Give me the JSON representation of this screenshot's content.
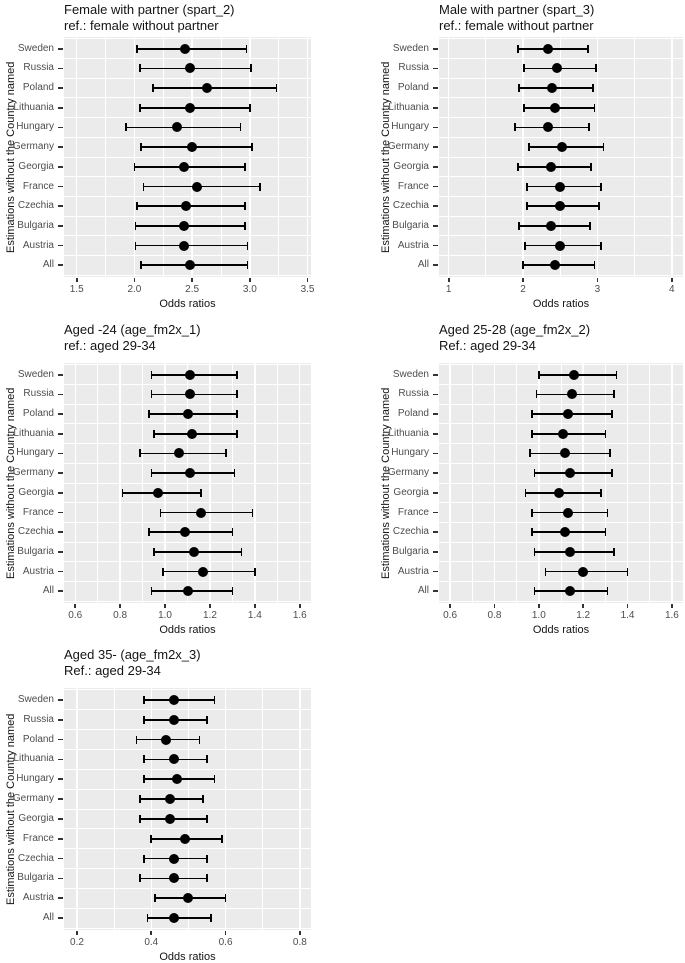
{
  "figure": {
    "x_axis_label": "Odds ratios",
    "y_axis_label": "Estimations without the Country named",
    "countries": [
      "Sweden",
      "Russia",
      "Poland",
      "Lithuania",
      "Hungary",
      "Germany",
      "Georgia",
      "France",
      "Czechia",
      "Bulgaria",
      "Austria",
      "All"
    ],
    "colors": {
      "panel_background": "#ebebeb",
      "gridline": "#ffffff",
      "point": "#000000",
      "axis_text": "#4d4d4d",
      "title_text": "#141414"
    }
  },
  "chart_data": [
    {
      "id": "spart_2",
      "type": "scatter",
      "title_line1": "Female with partner (spart_2)",
      "title_line2": "ref.: female without partner",
      "xlabel": "Odds ratios",
      "ylabel": "Estimations without the Country named",
      "grid": true,
      "legend": false,
      "x_tick_values": [
        1.5,
        2.0,
        2.5,
        3.0,
        3.5
      ],
      "x_tick_labels": [
        "1.5",
        "2.0",
        "2.5",
        "3.0",
        "3.5"
      ],
      "xlim": [
        1.39,
        3.53
      ],
      "categories": [
        "Sweden",
        "Russia",
        "Poland",
        "Lithuania",
        "Hungary",
        "Germany",
        "Georgia",
        "France",
        "Czechia",
        "Bulgaria",
        "Austria",
        "All"
      ],
      "series": [
        {
          "name": "odds_ratio",
          "values": [
            2.44,
            2.48,
            2.63,
            2.48,
            2.37,
            2.5,
            2.43,
            2.54,
            2.45,
            2.43,
            2.43,
            2.48
          ]
        },
        {
          "name": "ci_low",
          "values": [
            2.02,
            2.05,
            2.16,
            2.05,
            1.93,
            2.06,
            2.0,
            2.08,
            2.02,
            2.01,
            2.01,
            2.06
          ]
        },
        {
          "name": "ci_high",
          "values": [
            2.97,
            3.01,
            3.23,
            3.0,
            2.92,
            3.02,
            2.96,
            3.09,
            2.96,
            2.96,
            2.98,
            2.98
          ]
        }
      ]
    },
    {
      "id": "spart_3",
      "type": "scatter",
      "title_line1": "Male with partner (spart_3)",
      "title_line2": "ref.: female without partner",
      "xlabel": "Odds ratios",
      "ylabel": "Estimations without the Country named",
      "grid": true,
      "legend": false,
      "x_tick_values": [
        1,
        2,
        3,
        4
      ],
      "x_tick_labels": [
        "1",
        "2",
        "3",
        "4"
      ],
      "xlim": [
        0.87,
        4.15
      ],
      "categories": [
        "Sweden",
        "Russia",
        "Poland",
        "Lithuania",
        "Hungary",
        "Germany",
        "Georgia",
        "France",
        "Czechia",
        "Bulgaria",
        "Austria",
        "All"
      ],
      "series": [
        {
          "name": "odds_ratio",
          "values": [
            2.34,
            2.45,
            2.39,
            2.43,
            2.34,
            2.53,
            2.37,
            2.5,
            2.5,
            2.38,
            2.49,
            2.43
          ]
        },
        {
          "name": "ci_low",
          "values": [
            1.93,
            2.01,
            1.95,
            2.01,
            1.89,
            2.08,
            1.93,
            2.05,
            2.05,
            1.95,
            2.03,
            2.0
          ]
        },
        {
          "name": "ci_high",
          "values": [
            2.87,
            2.98,
            2.94,
            2.96,
            2.89,
            3.08,
            2.91,
            3.05,
            3.02,
            2.9,
            3.05,
            2.96
          ]
        }
      ]
    },
    {
      "id": "age_fm2x_1",
      "type": "scatter",
      "title_line1": "Aged -24 (age_fm2x_1)",
      "title_line2": "ref.: aged 29-34",
      "xlabel": "Odds ratios",
      "ylabel": "Estimations without the Country named",
      "grid": true,
      "legend": false,
      "x_tick_values": [
        0.6,
        0.8,
        1.0,
        1.2,
        1.4,
        1.6
      ],
      "x_tick_labels": [
        "0.6",
        "0.8",
        "1.0",
        "1.2",
        "1.4",
        "1.6"
      ],
      "xlim": [
        0.55,
        1.65
      ],
      "categories": [
        "Sweden",
        "Russia",
        "Poland",
        "Lithuania",
        "Hungary",
        "Germany",
        "Georgia",
        "France",
        "Czechia",
        "Bulgaria",
        "Austria",
        "All"
      ],
      "series": [
        {
          "name": "odds_ratio",
          "values": [
            1.11,
            1.11,
            1.1,
            1.12,
            1.06,
            1.11,
            0.97,
            1.16,
            1.09,
            1.13,
            1.17,
            1.1
          ]
        },
        {
          "name": "ci_low",
          "values": [
            0.94,
            0.94,
            0.93,
            0.95,
            0.89,
            0.94,
            0.81,
            0.98,
            0.93,
            0.95,
            0.99,
            0.94
          ]
        },
        {
          "name": "ci_high",
          "values": [
            1.32,
            1.32,
            1.32,
            1.32,
            1.27,
            1.31,
            1.16,
            1.39,
            1.3,
            1.34,
            1.4,
            1.3
          ]
        }
      ]
    },
    {
      "id": "age_fm2x_2",
      "type": "scatter",
      "title_line1": "Aged 25-28 (age_fm2x_2)",
      "title_line2": "Ref.: aged 29-34",
      "xlabel": "Odds ratios",
      "ylabel": "Estimations without the Country named",
      "grid": true,
      "legend": false,
      "x_tick_values": [
        0.6,
        0.8,
        1.0,
        1.2,
        1.4,
        1.6
      ],
      "x_tick_labels": [
        "0.6",
        "0.8",
        "1.0",
        "1.2",
        "1.4",
        "1.6"
      ],
      "xlim": [
        0.55,
        1.65
      ],
      "categories": [
        "Sweden",
        "Russia",
        "Poland",
        "Lithuania",
        "Hungary",
        "Germany",
        "Georgia",
        "France",
        "Czechia",
        "Bulgaria",
        "Austria",
        "All"
      ],
      "series": [
        {
          "name": "odds_ratio",
          "values": [
            1.16,
            1.15,
            1.13,
            1.11,
            1.12,
            1.14,
            1.09,
            1.13,
            1.12,
            1.14,
            1.2,
            1.14
          ]
        },
        {
          "name": "ci_low",
          "values": [
            1.0,
            0.99,
            0.97,
            0.97,
            0.96,
            0.98,
            0.94,
            0.97,
            0.97,
            0.98,
            1.03,
            0.98
          ]
        },
        {
          "name": "ci_high",
          "values": [
            1.35,
            1.34,
            1.33,
            1.3,
            1.32,
            1.33,
            1.28,
            1.31,
            1.3,
            1.34,
            1.4,
            1.31
          ]
        }
      ]
    },
    {
      "id": "age_fm2x_3",
      "type": "scatter",
      "title_line1": "Aged 35-  (age_fm2x_3)",
      "title_line2": "Ref.: aged 29-34",
      "xlabel": "Odds ratios",
      "ylabel": "Estimations without the Country named",
      "grid": true,
      "legend": false,
      "x_tick_values": [
        0.2,
        0.4,
        0.6,
        0.8
      ],
      "x_tick_labels": [
        "0.2",
        "0.4",
        "0.6",
        "0.8"
      ],
      "xlim": [
        0.165,
        0.83
      ],
      "categories": [
        "Sweden",
        "Russia",
        "Poland",
        "Lithuania",
        "Hungary",
        "Germany",
        "Georgia",
        "France",
        "Czechia",
        "Bulgaria",
        "Austria",
        "All"
      ],
      "series": [
        {
          "name": "odds_ratio",
          "values": [
            0.46,
            0.46,
            0.44,
            0.46,
            0.47,
            0.45,
            0.45,
            0.49,
            0.46,
            0.46,
            0.5,
            0.46
          ]
        },
        {
          "name": "ci_low",
          "values": [
            0.38,
            0.38,
            0.36,
            0.38,
            0.38,
            0.37,
            0.37,
            0.4,
            0.38,
            0.37,
            0.41,
            0.39
          ]
        },
        {
          "name": "ci_high",
          "values": [
            0.57,
            0.55,
            0.53,
            0.55,
            0.57,
            0.54,
            0.55,
            0.59,
            0.55,
            0.55,
            0.6,
            0.56
          ]
        }
      ]
    }
  ]
}
